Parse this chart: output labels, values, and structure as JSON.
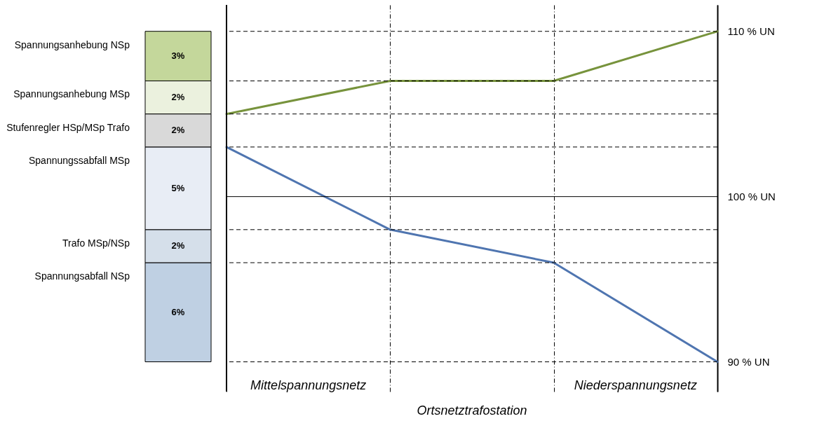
{
  "chart_data": [
    {
      "type": "bar",
      "stacked": true,
      "categories": [
        null
      ],
      "tick_labels": false,
      "legend": false,
      "series": [
        {
          "name": "Spannungsabfall NSp",
          "color": "#bfd0e3",
          "values": [
            6
          ],
          "value_labels": [
            "6%"
          ]
        },
        {
          "name": "Trafo MSp/NSp",
          "color": "#d5dfea",
          "values": [
            2
          ],
          "value_labels": [
            "2%"
          ]
        },
        {
          "name": "Spannungssabfall MSp",
          "color": "#e8edf5",
          "values": [
            5
          ],
          "value_labels": [
            "5%"
          ]
        },
        {
          "name": "Stufenregler HSp/MSp Trafo",
          "color": "#d9d9d9",
          "values": [
            2
          ],
          "value_labels": [
            "2%"
          ]
        },
        {
          "name": "Spannungsanhebung MSp",
          "color": "#ebf1de",
          "values": [
            2
          ],
          "value_labels": [
            "2%"
          ]
        },
        {
          "name": "Spannungsanhebung NSp",
          "color": "#c4d79b",
          "values": [
            3
          ],
          "value_labels": [
            "3%"
          ]
        }
      ]
    },
    {
      "type": "line",
      "categories": [
        null,
        null,
        null,
        null
      ],
      "ylim": [
        88.2,
        111.6
      ],
      "legend": false,
      "grid": "x",
      "line_style": "solid",
      "marker": "none",
      "yticks": [
        {
          "value": 90,
          "label": "90 % UN"
        },
        {
          "value": 100,
          "label": "100 % UN"
        },
        {
          "value": 110,
          "label": "110 % UN"
        }
      ],
      "series": [
        {
          "color": "#77933c",
          "values": [
            105,
            107,
            107,
            110
          ]
        },
        {
          "color": "#4f75b0",
          "values": [
            103,
            98,
            96,
            90
          ]
        }
      ],
      "ref_lines": [
        {
          "axis": "y",
          "value": 110,
          "line_style": "dashed"
        },
        {
          "axis": "y",
          "value": 107,
          "line_style": "dashed"
        },
        {
          "axis": "y",
          "value": 105,
          "line_style": "dashed"
        },
        {
          "axis": "y",
          "value": 103,
          "line_style": "dashed"
        },
        {
          "axis": "y",
          "value": 100,
          "line_style": "solid"
        },
        {
          "axis": "y",
          "value": 98,
          "line_style": "dashed"
        },
        {
          "axis": "y",
          "value": 96,
          "line_style": "dashed"
        },
        {
          "axis": "y",
          "value": 90,
          "line_style": "dashed"
        }
      ],
      "annotations": [
        "Mittelspannungsnetz",
        "Niederspannungsnetz",
        "Ortsnetztrafostation"
      ]
    }
  ]
}
